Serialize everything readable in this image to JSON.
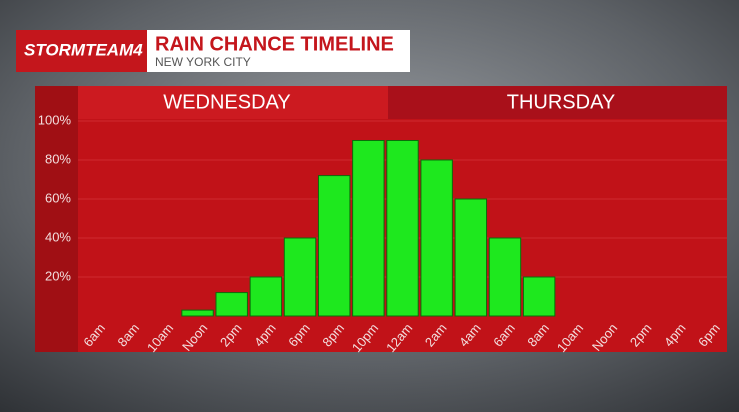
{
  "chart_data": {
    "type": "bar",
    "brand": "STORMTEAM4",
    "title": "RAIN CHANCE TIMELINE",
    "subtitle": "NEW YORK CITY",
    "days": [
      "WEDNESDAY",
      "THURSDAY"
    ],
    "categories": [
      "6am",
      "8am",
      "10am",
      "Noon",
      "2pm",
      "4pm",
      "6pm",
      "8pm",
      "10pm",
      "12am",
      "2am",
      "4am",
      "6am",
      "8am",
      "10am",
      "Noon",
      "2pm",
      "4pm",
      "6pm"
    ],
    "values": [
      0,
      0,
      0,
      3,
      12,
      20,
      40,
      72,
      90,
      90,
      80,
      60,
      40,
      20,
      0,
      0,
      0,
      0,
      0
    ],
    "color": "#1ee81e",
    "ylim": [
      0,
      100
    ],
    "yticks": [
      {
        "value": 20,
        "label": "20%"
      },
      {
        "value": 40,
        "label": "40%"
      },
      {
        "value": 60,
        "label": "60%"
      },
      {
        "value": 80,
        "label": "80%"
      },
      {
        "value": 100,
        "label": "100%"
      }
    ],
    "grid": true
  }
}
